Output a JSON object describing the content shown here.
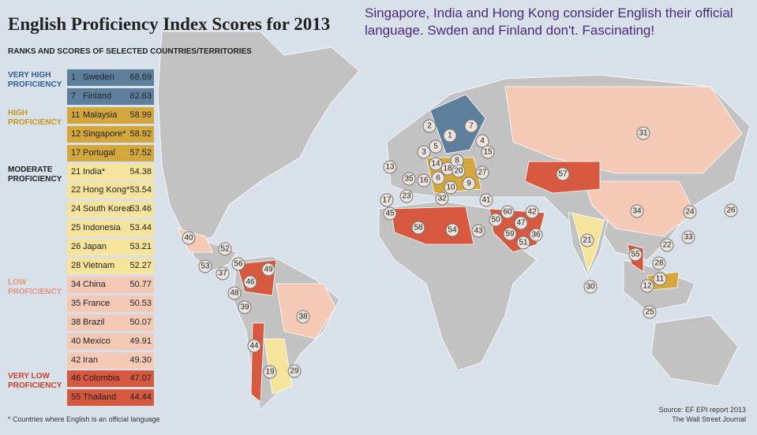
{
  "header": {
    "title": "English Proficiency Index Scores for 2013",
    "subtitle": "RANKS AND SCORES OF SELECTED COUNTRIES/TERRITORIES"
  },
  "annotation": "Singapore, India and Hong Kong consider English their official language. Swden and Finland don't. Fascinating!",
  "table": {
    "groups": [
      {
        "label": "VERY HIGH PROFICIENCY",
        "label_color": "#2d5f93",
        "color": "#5e7f9b",
        "rows": [
          {
            "rank": "1",
            "country": "Sweden",
            "score": "68.69"
          },
          {
            "rank": "7",
            "country": "Finland",
            "score": "62.63"
          }
        ]
      },
      {
        "label": "HIGH PROFICIENCY",
        "label_color": "#c9951e",
        "color": "#d4a73d",
        "rows": [
          {
            "rank": "11",
            "country": "Malaysia",
            "score": "58.99"
          },
          {
            "rank": "12",
            "country": "Singapore*",
            "score": "58.92"
          },
          {
            "rank": "17",
            "country": "Portugal",
            "score": "57.52"
          }
        ]
      },
      {
        "label": "MODERATE PROFICIENCY",
        "label_color": "#222222",
        "color": "#f6e49c",
        "rows": [
          {
            "rank": "21",
            "country": "India*",
            "score": "54.38"
          },
          {
            "rank": "22",
            "country": "Hong Kong*",
            "score": "53.54"
          },
          {
            "rank": "24",
            "country": "South Korea",
            "score": "53.46"
          },
          {
            "rank": "25",
            "country": "Indonesia",
            "score": "53.44"
          },
          {
            "rank": "26",
            "country": "Japan",
            "score": "53.21"
          },
          {
            "rank": "28",
            "country": "Vietnam",
            "score": "52.27"
          }
        ]
      },
      {
        "label": "LOW PROFICIENCY",
        "label_color": "#e3967c",
        "color": "#f4cab6",
        "rows": [
          {
            "rank": "34",
            "country": "China",
            "score": "50.77"
          },
          {
            "rank": "35",
            "country": "France",
            "score": "50.53"
          },
          {
            "rank": "38",
            "country": "Brazil",
            "score": "50.07"
          },
          {
            "rank": "40",
            "country": "Mexico",
            "score": "49.91"
          },
          {
            "rank": "42",
            "country": "Iran",
            "score": "49.30"
          }
        ]
      },
      {
        "label": "VERY LOW PROFICIENCY",
        "label_color": "#c9402a",
        "color": "#d6583f",
        "rows": [
          {
            "rank": "46",
            "country": "Colombia",
            "score": "47.07"
          },
          {
            "rank": "55",
            "country": "Thailand",
            "score": "44.44"
          }
        ]
      }
    ]
  },
  "footnote": "* Countries where English is an official language",
  "source": [
    "Source: EF EPI report 2013",
    "The Wall Street Journal"
  ],
  "map_labels": [
    "1",
    "2",
    "7",
    "5",
    "3",
    "4",
    "15",
    "13",
    "14",
    "8",
    "18",
    "20",
    "6",
    "9",
    "10",
    "16",
    "35",
    "27",
    "23",
    "17",
    "32",
    "41",
    "45",
    "58",
    "54",
    "43",
    "50",
    "60",
    "47",
    "42",
    "59",
    "51",
    "36",
    "57",
    "31",
    "34",
    "24",
    "26",
    "22",
    "33",
    "21",
    "55",
    "28",
    "11",
    "12",
    "30",
    "25",
    "40",
    "52",
    "53",
    "37",
    "56",
    "46",
    "49",
    "48",
    "39",
    "38",
    "44",
    "19",
    "29"
  ]
}
